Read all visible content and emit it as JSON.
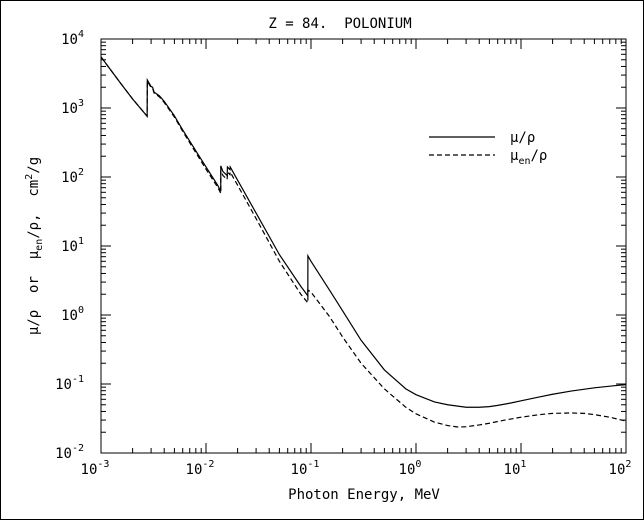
{
  "chart_data": {
    "type": "line",
    "title": "Z = 84.  POLONIUM",
    "xlabel": "Photon Energy, MeV",
    "ylabel": {
      "parts": [
        "μ/ρ  or  μ",
        "en",
        "/ρ,  cm",
        "2",
        "/g"
      ]
    },
    "x_scale": "log",
    "y_scale": "log",
    "xlim": [
      0.001,
      100
    ],
    "ylim": [
      0.01,
      10000
    ],
    "x_ticks": [
      {
        "base": "10",
        "exp": "-3",
        "value": 0.001
      },
      {
        "base": "10",
        "exp": "-2",
        "value": 0.01
      },
      {
        "base": "10",
        "exp": "-1",
        "value": 0.1
      },
      {
        "base": "10",
        "exp": "0",
        "value": 1
      },
      {
        "base": "10",
        "exp": "1",
        "value": 10
      },
      {
        "base": "10",
        "exp": "2",
        "value": 100
      }
    ],
    "y_ticks": [
      {
        "base": "10",
        "exp": "-2",
        "value": 0.01
      },
      {
        "base": "10",
        "exp": "-1",
        "value": 0.1
      },
      {
        "base": "10",
        "exp": "0",
        "value": 1
      },
      {
        "base": "10",
        "exp": "1",
        "value": 10
      },
      {
        "base": "10",
        "exp": "2",
        "value": 100
      },
      {
        "base": "10",
        "exp": "3",
        "value": 1000
      },
      {
        "base": "10",
        "exp": "4",
        "value": 10000
      }
    ],
    "grid": false,
    "legend_position": "upper-right",
    "series": [
      {
        "name": "μ/ρ",
        "legend": {
          "main": "μ/ρ",
          "sub": ""
        },
        "style": "solid",
        "points": [
          [
            0.001,
            5500
          ],
          [
            0.0015,
            2400
          ],
          [
            0.002,
            1350
          ],
          [
            0.00275,
            760
          ],
          [
            0.00276,
            2550
          ],
          [
            0.003,
            2050
          ],
          [
            0.0031,
            2000
          ],
          [
            0.0032,
            1700
          ],
          [
            0.0036,
            1500
          ],
          [
            0.004,
            1250
          ],
          [
            0.005,
            770
          ],
          [
            0.006,
            480
          ],
          [
            0.008,
            240
          ],
          [
            0.01,
            140
          ],
          [
            0.013,
            75
          ],
          [
            0.01382,
            62
          ],
          [
            0.01383,
            145
          ],
          [
            0.0145,
            120
          ],
          [
            0.0159,
            105
          ],
          [
            0.016,
            140
          ],
          [
            0.0169,
            128
          ],
          [
            0.017,
            140
          ],
          [
            0.02,
            90
          ],
          [
            0.03,
            30
          ],
          [
            0.05,
            7.5
          ],
          [
            0.08,
            2.6
          ],
          [
            0.0933,
            1.9
          ],
          [
            0.0934,
            7.2
          ],
          [
            0.1,
            6.0
          ],
          [
            0.15,
            2.3
          ],
          [
            0.2,
            1.15
          ],
          [
            0.3,
            0.43
          ],
          [
            0.5,
            0.16
          ],
          [
            0.8,
            0.085
          ],
          [
            1,
            0.07
          ],
          [
            1.5,
            0.055
          ],
          [
            2,
            0.05
          ],
          [
            3,
            0.046
          ],
          [
            4,
            0.046
          ],
          [
            5,
            0.047
          ],
          [
            6,
            0.049
          ],
          [
            8,
            0.053
          ],
          [
            10,
            0.057
          ],
          [
            15,
            0.065
          ],
          [
            20,
            0.071
          ],
          [
            30,
            0.079
          ],
          [
            50,
            0.088
          ],
          [
            80,
            0.095
          ],
          [
            100,
            0.098
          ]
        ]
      },
      {
        "name": "μen/ρ",
        "legend": {
          "main": "μ",
          "sub": "en",
          "tail": "/ρ"
        },
        "style": "dashed",
        "points": [
          [
            0.001,
            5500
          ],
          [
            0.0015,
            2400
          ],
          [
            0.002,
            1350
          ],
          [
            0.00275,
            760
          ],
          [
            0.00276,
            2450
          ],
          [
            0.003,
            1980
          ],
          [
            0.0031,
            1930
          ],
          [
            0.0032,
            1650
          ],
          [
            0.0036,
            1450
          ],
          [
            0.004,
            1200
          ],
          [
            0.005,
            740
          ],
          [
            0.006,
            460
          ],
          [
            0.008,
            225
          ],
          [
            0.01,
            130
          ],
          [
            0.013,
            70
          ],
          [
            0.01382,
            58
          ],
          [
            0.01383,
            125
          ],
          [
            0.0145,
            105
          ],
          [
            0.0159,
            92
          ],
          [
            0.016,
            118
          ],
          [
            0.0169,
            108
          ],
          [
            0.017,
            118
          ],
          [
            0.02,
            76
          ],
          [
            0.03,
            25
          ],
          [
            0.05,
            6.0
          ],
          [
            0.08,
            2.0
          ],
          [
            0.0933,
            1.5
          ],
          [
            0.0934,
            2.3
          ],
          [
            0.1,
            2.15
          ],
          [
            0.15,
            0.95
          ],
          [
            0.2,
            0.48
          ],
          [
            0.3,
            0.2
          ],
          [
            0.5,
            0.085
          ],
          [
            0.8,
            0.046
          ],
          [
            1,
            0.037
          ],
          [
            1.5,
            0.028
          ],
          [
            2,
            0.025
          ],
          [
            2.5,
            0.0238
          ],
          [
            3,
            0.024
          ],
          [
            4,
            0.0255
          ],
          [
            5,
            0.027
          ],
          [
            7,
            0.03
          ],
          [
            10,
            0.033
          ],
          [
            15,
            0.036
          ],
          [
            20,
            0.0375
          ],
          [
            30,
            0.038
          ],
          [
            40,
            0.0375
          ],
          [
            50,
            0.036
          ],
          [
            70,
            0.033
          ],
          [
            100,
            0.029
          ]
        ]
      }
    ]
  }
}
